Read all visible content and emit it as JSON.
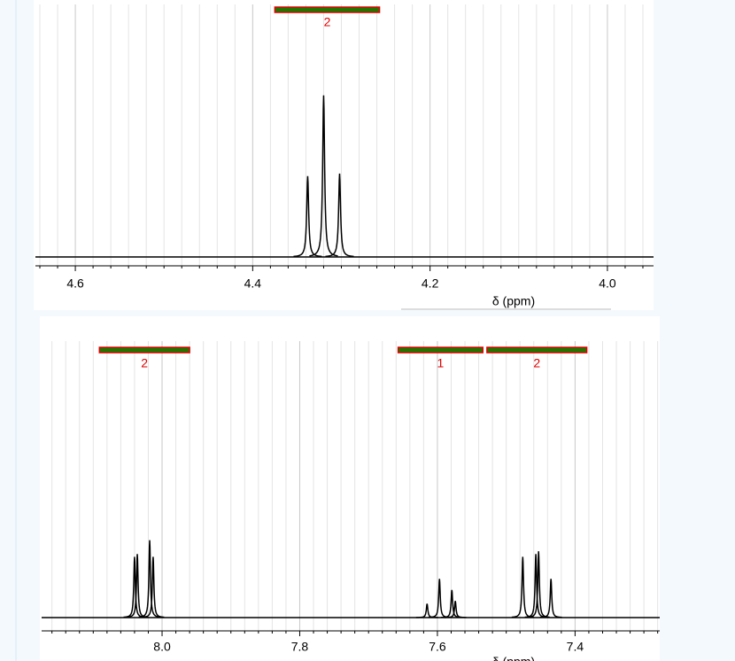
{
  "chart_data": [
    {
      "type": "spectrum",
      "xlabel": "δ (ppm)",
      "xlim": [
        4.645,
        3.948
      ],
      "ylim": [
        0,
        100
      ],
      "xticks": [
        4.6,
        4.4,
        4.2,
        {
          "value": 4,
          "label": "4.0"
        }
      ],
      "grid": true,
      "color": "#000000",
      "integral_color": "#1a7a00",
      "integral_border": "#e00000",
      "peaks": {
        "x": [
          4.338,
          4.32,
          4.302
        ],
        "values": [
          32,
          64,
          33
        ]
      },
      "integrals": [
        {
          "from": 4.375,
          "to": 4.257,
          "value": 2
        }
      ]
    },
    {
      "type": "spectrum",
      "xlabel": "δ (ppm)",
      "xlim": [
        8.175,
        7.277
      ],
      "ylim": [
        0,
        100
      ],
      "xticks": [
        {
          "value": 8,
          "label": "8.0"
        },
        7.8,
        7.6,
        7.4
      ],
      "grid": true,
      "color": "#000000",
      "integral_color": "#1a7a00",
      "integral_border": "#e00000",
      "peaks": {
        "x": [
          8.04,
          8.036,
          8.018,
          8.013,
          7.615,
          7.597,
          7.579,
          7.574,
          7.476,
          7.457,
          7.453,
          7.435
        ],
        "values": [
          22,
          23,
          28,
          22,
          5,
          14,
          10,
          6,
          22,
          23,
          24,
          14
        ]
      },
      "integrals": [
        {
          "from": 8.091,
          "to": 7.96,
          "value": 2
        },
        {
          "from": 7.657,
          "to": 7.534,
          "value": 1
        },
        {
          "from": 7.528,
          "to": 7.383,
          "value": 2
        }
      ]
    }
  ]
}
